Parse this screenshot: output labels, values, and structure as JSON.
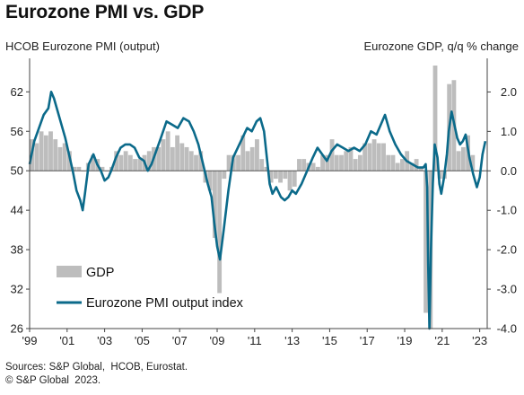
{
  "chart_data": {
    "type": "bar+line",
    "title": "Eurozone PMI vs. GDP",
    "left_axis_label": "HCOB Eurozone PMI (output)",
    "right_axis_label": "Eurozone GDP, q/q % change",
    "left_ylim": [
      26,
      66
    ],
    "left_ticks": [
      "62",
      "56",
      "50",
      "44",
      "38",
      "32",
      "26"
    ],
    "left_tick_values": [
      62,
      56,
      50,
      44,
      38,
      32,
      26
    ],
    "right_ylim": [
      -4.0,
      2.67
    ],
    "right_ticks": [
      "2.0",
      "1.0",
      "0.0",
      "-1.0",
      "-2.0",
      "-3.0",
      "-4.0"
    ],
    "right_tick_values": [
      2.0,
      1.0,
      0.0,
      -1.0,
      -2.0,
      -3.0,
      -4.0
    ],
    "x_ticks": [
      "'99",
      "'01",
      "'03",
      "'05",
      "'07",
      "'09",
      "'11",
      "'13",
      "'15",
      "'17",
      "'19",
      "'21",
      "'23"
    ],
    "x_tick_values": [
      1999,
      2001,
      2003,
      2005,
      2007,
      2009,
      2011,
      2013,
      2015,
      2017,
      2019,
      2021,
      2023
    ],
    "xlim": [
      1999.0,
      2023.4
    ],
    "legend": [
      {
        "label": "GDP",
        "kind": "bar"
      },
      {
        "label": "Eurozone PMI output index",
        "kind": "line"
      }
    ],
    "colors": {
      "gdp_bar": "#bdbdbd",
      "pmi_line": "#0b6a8a"
    },
    "gdp_series": {
      "name": "GDP",
      "x": [
        1999.125,
        1999.375,
        1999.625,
        1999.875,
        2000.125,
        2000.375,
        2000.625,
        2000.875,
        2001.125,
        2001.375,
        2001.625,
        2001.875,
        2002.125,
        2002.375,
        2002.625,
        2002.875,
        2003.125,
        2003.375,
        2003.625,
        2003.875,
        2004.125,
        2004.375,
        2004.625,
        2004.875,
        2005.125,
        2005.375,
        2005.625,
        2005.875,
        2006.125,
        2006.375,
        2006.625,
        2006.875,
        2007.125,
        2007.375,
        2007.625,
        2007.875,
        2008.125,
        2008.375,
        2008.625,
        2008.875,
        2009.125,
        2009.375,
        2009.625,
        2009.875,
        2010.125,
        2010.375,
        2010.625,
        2010.875,
        2011.125,
        2011.375,
        2011.625,
        2011.875,
        2012.125,
        2012.375,
        2012.625,
        2012.875,
        2013.125,
        2013.375,
        2013.625,
        2013.875,
        2014.125,
        2014.375,
        2014.625,
        2014.875,
        2015.125,
        2015.375,
        2015.625,
        2015.875,
        2016.125,
        2016.375,
        2016.625,
        2016.875,
        2017.125,
        2017.375,
        2017.625,
        2017.875,
        2018.125,
        2018.375,
        2018.625,
        2018.875,
        2019.125,
        2019.375,
        2019.625,
        2019.875,
        2020.125,
        2020.375,
        2020.625,
        2020.875,
        2021.125,
        2021.375,
        2021.625,
        2021.875,
        2022.125,
        2022.375,
        2022.625,
        2022.875,
        2023.125
      ],
      "values": [
        0.8,
        0.7,
        1.0,
        0.9,
        1.0,
        0.8,
        0.6,
        0.7,
        0.5,
        0.1,
        0.1,
        0.0,
        0.2,
        0.4,
        0.3,
        0.1,
        0.0,
        0.1,
        0.5,
        0.4,
        0.5,
        0.4,
        0.3,
        0.3,
        0.4,
        0.5,
        0.6,
        0.6,
        0.8,
        1.0,
        0.6,
        0.9,
        0.7,
        0.6,
        0.5,
        0.4,
        0.5,
        -0.3,
        -0.5,
        -1.7,
        -3.1,
        -0.2,
        0.4,
        0.4,
        0.4,
        0.9,
        0.5,
        0.6,
        0.8,
        0.3,
        0.1,
        -0.3,
        -0.2,
        -0.3,
        -0.2,
        -0.5,
        -0.4,
        0.3,
        0.3,
        0.2,
        0.2,
        0.1,
        0.4,
        0.4,
        0.8,
        0.4,
        0.4,
        0.5,
        0.6,
        0.3,
        0.4,
        0.7,
        0.7,
        0.8,
        0.7,
        0.7,
        0.4,
        0.4,
        0.2,
        0.3,
        0.5,
        0.2,
        0.3,
        0.1,
        -3.6,
        -11.5,
        12.5,
        -0.2,
        -0.2,
        2.2,
        2.3,
        0.5,
        0.6,
        0.9,
        0.4,
        0.0,
        0.0
      ]
    },
    "pmi_series": {
      "name": "Eurozone PMI output index",
      "x": [
        1999.0,
        1999.25,
        1999.5,
        1999.75,
        2000.0,
        2000.15,
        2000.3,
        2000.5,
        2000.7,
        2000.9,
        2001.1,
        2001.3,
        2001.5,
        2001.7,
        2001.83,
        2001.95,
        2002.15,
        2002.4,
        2002.6,
        2002.8,
        2003.0,
        2003.2,
        2003.35,
        2003.6,
        2003.85,
        2004.1,
        2004.35,
        2004.6,
        2004.85,
        2005.1,
        2005.3,
        2005.5,
        2005.75,
        2006.0,
        2006.3,
        2006.6,
        2006.9,
        2007.2,
        2007.5,
        2007.75,
        2008.0,
        2008.25,
        2008.5,
        2008.7,
        2008.85,
        2009.0,
        2009.15,
        2009.35,
        2009.6,
        2009.85,
        2010.1,
        2010.35,
        2010.6,
        2010.85,
        2011.1,
        2011.3,
        2011.5,
        2011.65,
        2011.8,
        2011.95,
        2012.15,
        2012.4,
        2012.6,
        2012.8,
        2013.0,
        2013.2,
        2013.5,
        2013.8,
        2014.1,
        2014.35,
        2014.6,
        2014.85,
        2015.1,
        2015.4,
        2015.7,
        2016.0,
        2016.3,
        2016.6,
        2016.9,
        2017.2,
        2017.5,
        2017.8,
        2017.95,
        2018.2,
        2018.5,
        2018.8,
        2019.1,
        2019.4,
        2019.7,
        2020.0,
        2020.12,
        2020.2,
        2020.25,
        2020.32,
        2020.4,
        2020.5,
        2020.6,
        2020.75,
        2020.85,
        2020.95,
        2021.1,
        2021.25,
        2021.35,
        2021.5,
        2021.65,
        2021.8,
        2021.95,
        2022.1,
        2022.25,
        2022.45,
        2022.65,
        2022.85,
        2023.0,
        2023.15,
        2023.3
      ],
      "values": [
        51.0,
        54.5,
        56.5,
        58.5,
        59.5,
        62.0,
        61.0,
        59.0,
        57.0,
        55.0,
        52.5,
        50.0,
        47.0,
        45.5,
        44.0,
        46.5,
        51.0,
        52.5,
        51.0,
        50.0,
        48.5,
        49.0,
        50.0,
        52.0,
        53.5,
        54.0,
        54.0,
        53.5,
        52.0,
        51.5,
        50.0,
        51.0,
        53.0,
        55.0,
        57.5,
        57.0,
        56.5,
        58.0,
        57.5,
        56.0,
        54.0,
        51.0,
        48.0,
        46.0,
        42.0,
        38.5,
        36.5,
        41.0,
        47.0,
        52.0,
        53.5,
        55.0,
        56.5,
        56.0,
        57.5,
        58.0,
        56.0,
        52.0,
        48.0,
        46.5,
        47.5,
        46.0,
        45.5,
        46.0,
        47.0,
        46.5,
        48.0,
        50.0,
        52.0,
        53.5,
        52.5,
        51.5,
        53.0,
        54.0,
        53.5,
        53.0,
        53.5,
        53.0,
        54.0,
        56.0,
        55.5,
        57.5,
        58.5,
        56.0,
        54.0,
        52.5,
        51.5,
        51.0,
        50.5,
        50.5,
        51.0,
        47.5,
        36.0,
        26.0,
        38.0,
        48.0,
        54.0,
        52.0,
        48.0,
        46.5,
        49.0,
        52.5,
        56.0,
        59.0,
        57.0,
        55.0,
        54.0,
        54.5,
        55.5,
        52.0,
        49.5,
        47.5,
        49.0,
        52.5,
        54.5
      ]
    }
  }
}
